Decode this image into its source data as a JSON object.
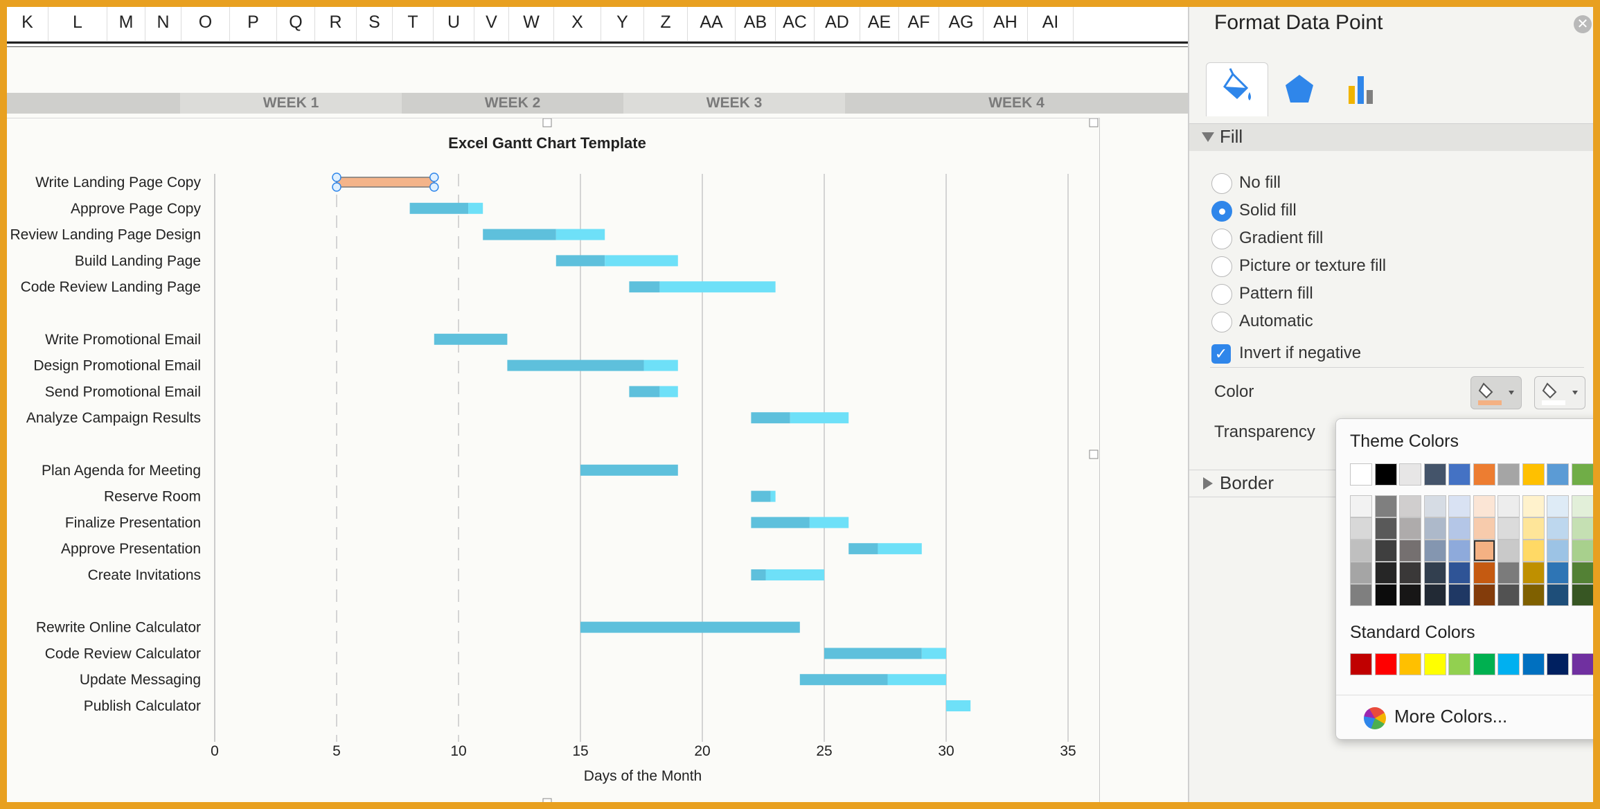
{
  "spreadsheet": {
    "columns": [
      "K",
      "L",
      "M",
      "N",
      "O",
      "P",
      "Q",
      "R",
      "S",
      "T",
      "U",
      "V",
      "W",
      "X",
      "Y",
      "Z",
      "AA",
      "AB",
      "AC",
      "AD",
      "AE",
      "AF",
      "AG",
      "AH",
      "AI"
    ],
    "weeks": [
      "WEEK 1",
      "WEEK 2",
      "WEEK 3",
      "WEEK 4"
    ]
  },
  "chart_data": {
    "type": "bar",
    "title": "Excel Gantt Chart Template",
    "xlabel": "Days of the Month",
    "ylabel": "",
    "xlim": [
      0,
      35
    ],
    "xticks": [
      0,
      5,
      10,
      15,
      20,
      25,
      30,
      35
    ],
    "grid": true,
    "tasks": [
      {
        "label": "Write Landing Page Copy",
        "start": 5,
        "done": 0,
        "remaining": 4,
        "selected": true
      },
      {
        "label": "Approve Page Copy",
        "start": 8,
        "done": 2.4,
        "remaining": 0.6
      },
      {
        "label": "Review Landing Page Design",
        "start": 11,
        "done": 3,
        "remaining": 2
      },
      {
        "label": "Build Landing Page",
        "start": 14,
        "done": 2,
        "remaining": 3
      },
      {
        "label": "Code Review Landing Page",
        "start": 17,
        "done": 1.25,
        "remaining": 4.75
      },
      {
        "label": "",
        "start": 0,
        "done": 0,
        "remaining": 0
      },
      {
        "label": "Write Promotional Email",
        "start": 9,
        "done": 3,
        "remaining": 0
      },
      {
        "label": "Design Promotional Email",
        "start": 12,
        "done": 5.6,
        "remaining": 1.4
      },
      {
        "label": "Send Promotional Email",
        "start": 17,
        "done": 1.25,
        "remaining": 0.75
      },
      {
        "label": "Analyze Campaign Results",
        "start": 22,
        "done": 1.6,
        "remaining": 2.4
      },
      {
        "label": "",
        "start": 0,
        "done": 0,
        "remaining": 0
      },
      {
        "label": "Plan Agenda for Meeting",
        "start": 15,
        "done": 4,
        "remaining": 0
      },
      {
        "label": "Reserve Room",
        "start": 22,
        "done": 0.8,
        "remaining": 0.2
      },
      {
        "label": "Finalize Presentation",
        "start": 22,
        "done": 2.4,
        "remaining": 1.6
      },
      {
        "label": "Approve Presentation",
        "start": 26,
        "done": 1.2,
        "remaining": 1.8
      },
      {
        "label": "Create Invitations",
        "start": 22,
        "done": 0.6,
        "remaining": 2.4
      },
      {
        "label": "",
        "start": 0,
        "done": 0,
        "remaining": 0
      },
      {
        "label": "Rewrite Online Calculator",
        "start": 15,
        "done": 9,
        "remaining": 0
      },
      {
        "label": "Code Review Calculator",
        "start": 25,
        "done": 4,
        "remaining": 1
      },
      {
        "label": "Update Messaging",
        "start": 24,
        "done": 3.6,
        "remaining": 2.4
      },
      {
        "label": "Publish Calculator",
        "start": 30,
        "done": 0,
        "remaining": 1
      }
    ],
    "colors": {
      "done": "#5ec0dc",
      "remaining": "#6ee0f8",
      "selected": "#f4b48a"
    }
  },
  "pane": {
    "title": "Format Data Point",
    "close_icon": "close-icon",
    "tabs": [
      "fill-line-icon",
      "effects-pentagon-icon",
      "series-options-icon"
    ],
    "fill_section": "Fill",
    "fill_options": [
      "No fill",
      "Solid fill",
      "Gradient fill",
      "Picture or texture fill",
      "Pattern fill",
      "Automatic"
    ],
    "fill_selected": "Solid fill",
    "invert_label": "Invert if negative",
    "invert_checked": true,
    "color_label": "Color",
    "transparency_label": "Transparency",
    "border_section": "Border"
  },
  "color_popup": {
    "theme_heading": "Theme Colors",
    "standard_heading": "Standard Colors",
    "more_colors": "More Colors...",
    "theme_top": [
      "#ffffff",
      "#000000",
      "#e7e6e6",
      "#44546a",
      "#4472c4",
      "#ed7d31",
      "#a5a5a5",
      "#ffc000",
      "#5b9bd5",
      "#70ad47"
    ],
    "theme_shades": [
      [
        "#f2f2f2",
        "#7f7f7f",
        "#d0cece",
        "#d6dce4",
        "#d9e2f3",
        "#fbe5d5",
        "#ededed",
        "#fff2cc",
        "#deebf6",
        "#e2efd9"
      ],
      [
        "#d8d8d8",
        "#595959",
        "#aeabab",
        "#adb9ca",
        "#b4c6e7",
        "#f7cbac",
        "#dbdbdb",
        "#fee599",
        "#bdd7ee",
        "#c5e0b3"
      ],
      [
        "#bfbfbf",
        "#3f3f3f",
        "#757070",
        "#8496b0",
        "#8eaadb",
        "#f4b183",
        "#c9c9c9",
        "#ffd965",
        "#9cc3e5",
        "#a8d08d"
      ],
      [
        "#a5a5a5",
        "#262626",
        "#3a3838",
        "#323f4f",
        "#2f5496",
        "#c55a11",
        "#7b7b7b",
        "#bf9000",
        "#2e75b5",
        "#538135"
      ],
      [
        "#7f7f7f",
        "#0c0c0c",
        "#171616",
        "#222a35",
        "#1f3864",
        "#833c0b",
        "#525252",
        "#7f6000",
        "#1e4e79",
        "#375623"
      ]
    ],
    "selected_swatch": "#f4b183",
    "standard": [
      "#c00000",
      "#ff0000",
      "#ffc000",
      "#ffff00",
      "#92d050",
      "#00b050",
      "#00b0f0",
      "#0070c0",
      "#002060",
      "#7030a0"
    ]
  }
}
